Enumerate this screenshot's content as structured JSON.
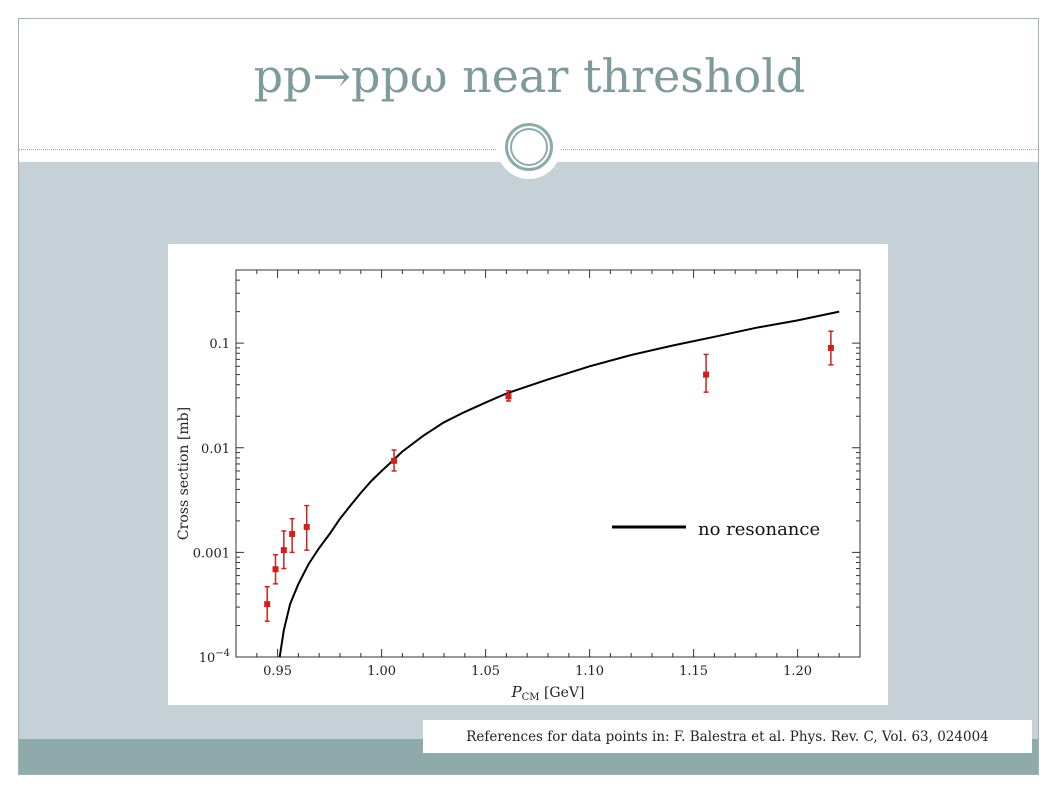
{
  "slide": {
    "title": "pp→ppω near threshold",
    "reference": "References for data points in: F. Balestra et al. Phys. Rev. C, Vol. 63, 024004",
    "colors": {
      "title": "#7f9a9b",
      "accent": "#8eaaab",
      "body": "#c5d1d7"
    }
  },
  "chart_data": {
    "type": "scatter",
    "title": "",
    "xlabel_main": "P",
    "xlabel_sub": "CM",
    "xlabel_unit": " [GeV]",
    "ylabel": "Cross section [mb]",
    "xlim": [
      0.93,
      1.23
    ],
    "ylim": [
      0.0001,
      0.5
    ],
    "y_scale": "log",
    "x_ticks": [
      0.95,
      1.0,
      1.05,
      1.1,
      1.15,
      1.2
    ],
    "x_tick_labels": [
      "0.95",
      "1.00",
      "1.05",
      "1.10",
      "1.15",
      "1.20"
    ],
    "y_ticks": [
      0.0001,
      0.001,
      0.01,
      0.1
    ],
    "y_tick_labels": [
      {
        "base": "10",
        "exp": "−4"
      },
      {
        "base": "0.001",
        "exp": ""
      },
      {
        "base": "0.01",
        "exp": ""
      },
      {
        "base": "0.1",
        "exp": ""
      }
    ],
    "grid": false,
    "legend": {
      "placement": "right",
      "label": "no resonance",
      "color": "#000000"
    },
    "points_color": "#d0201c",
    "points": [
      {
        "x": 0.945,
        "y": 0.00032,
        "ylow": 0.00022,
        "yhigh": 0.00047
      },
      {
        "x": 0.949,
        "y": 0.00069,
        "ylow": 0.0005,
        "yhigh": 0.00095
      },
      {
        "x": 0.953,
        "y": 0.00105,
        "ylow": 0.0007,
        "yhigh": 0.0016
      },
      {
        "x": 0.957,
        "y": 0.0015,
        "ylow": 0.001,
        "yhigh": 0.0021
      },
      {
        "x": 0.964,
        "y": 0.00175,
        "ylow": 0.00105,
        "yhigh": 0.0028
      },
      {
        "x": 1.006,
        "y": 0.0075,
        "ylow": 0.006,
        "yhigh": 0.0095
      },
      {
        "x": 1.061,
        "y": 0.031,
        "ylow": 0.028,
        "yhigh": 0.035
      },
      {
        "x": 1.156,
        "y": 0.05,
        "ylow": 0.034,
        "yhigh": 0.078
      },
      {
        "x": 1.216,
        "y": 0.09,
        "ylow": 0.062,
        "yhigh": 0.13
      }
    ],
    "curve": {
      "name": "no resonance",
      "x": [
        0.951,
        0.953,
        0.956,
        0.96,
        0.965,
        0.97,
        0.975,
        0.98,
        0.985,
        0.99,
        0.995,
        1.0,
        1.01,
        1.02,
        1.03,
        1.04,
        1.05,
        1.06,
        1.08,
        1.1,
        1.12,
        1.14,
        1.16,
        1.18,
        1.2,
        1.22
      ],
      "y": [
        0.0001,
        0.00018,
        0.00032,
        0.0005,
        0.00078,
        0.0011,
        0.0015,
        0.0021,
        0.0028,
        0.0037,
        0.0048,
        0.006,
        0.0092,
        0.013,
        0.0175,
        0.022,
        0.027,
        0.033,
        0.045,
        0.06,
        0.077,
        0.095,
        0.115,
        0.14,
        0.165,
        0.2
      ]
    }
  }
}
